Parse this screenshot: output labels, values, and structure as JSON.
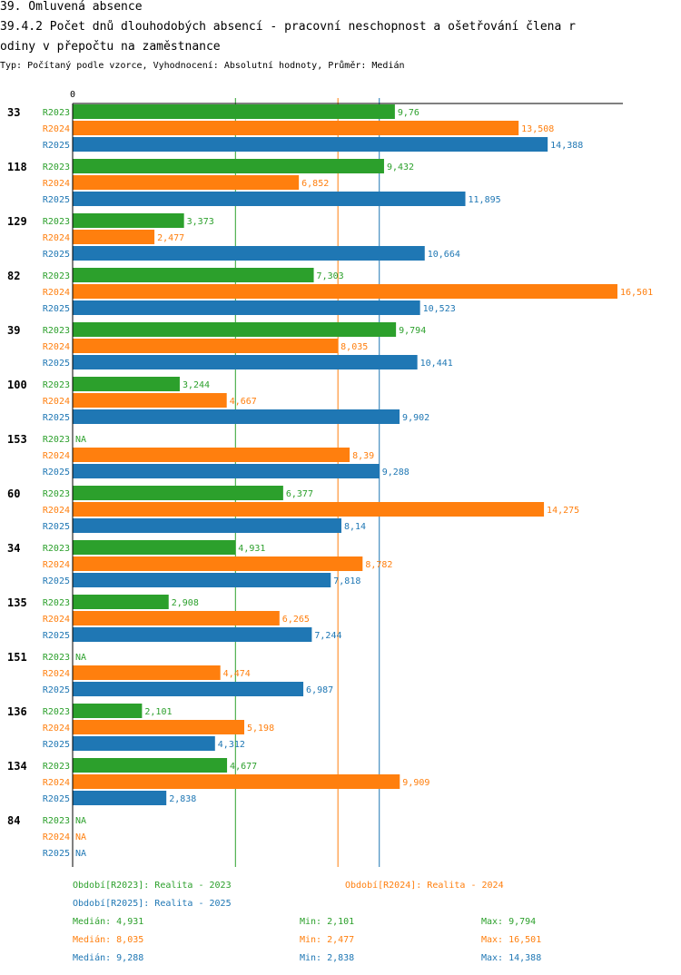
{
  "header": {
    "title": "39. Omluvená absence",
    "subtitle_line1": "39.4.2 Počet dnů dlouhodobých absencí - pracovní neschopnost a ošetřování člena r",
    "subtitle_line2": "odiny v přepočtu na zaměstnance",
    "type_line": "Typ: Počítaný podle vzorce, Vyhodnocení: Absolutní hodnoty, Průměr: Medián"
  },
  "colors": {
    "R2023": "#2ca02c",
    "R2024": "#ff7f0e",
    "R2025": "#1f77b4"
  },
  "chart_data": {
    "type": "bar",
    "orientation": "horizontal",
    "axis_zero_label": "0",
    "categories": [
      "33",
      "118",
      "129",
      "82",
      "39",
      "100",
      "153",
      "60",
      "34",
      "135",
      "151",
      "136",
      "134",
      "84"
    ],
    "series": [
      {
        "name": "R2023",
        "values": [
          9.76,
          9.432,
          3.373,
          7.303,
          9.794,
          3.244,
          null,
          6.377,
          4.931,
          2.908,
          null,
          2.101,
          4.677,
          null
        ],
        "labels": [
          "9,76",
          "9,432",
          "3,373",
          "7,303",
          "9,794",
          "3,244",
          "NA",
          "6,377",
          "4,931",
          "2,908",
          "NA",
          "2,101",
          "4,677",
          "NA"
        ]
      },
      {
        "name": "R2024",
        "values": [
          13.508,
          6.852,
          2.477,
          16.501,
          8.035,
          4.667,
          8.39,
          14.275,
          8.782,
          6.265,
          4.474,
          5.198,
          9.909,
          null
        ],
        "labels": [
          "13,508",
          "6,852",
          "2,477",
          "16,501",
          "8,035",
          "4,667",
          "8,39",
          "14,275",
          "8,782",
          "6,265",
          "4,474",
          "5,198",
          "9,909",
          "NA"
        ]
      },
      {
        "name": "R2025",
        "values": [
          14.388,
          11.895,
          10.664,
          10.523,
          10.441,
          9.902,
          9.288,
          8.14,
          7.818,
          7.244,
          6.987,
          4.312,
          2.838,
          null
        ],
        "labels": [
          "14,388",
          "11,895",
          "10,664",
          "10,523",
          "10,441",
          "9,902",
          "9,288",
          "8,14",
          "7,818",
          "7,244",
          "6,987",
          "4,312",
          "2,838",
          "NA"
        ]
      }
    ],
    "median_lines": {
      "R2023": 4.931,
      "R2024": 8.035,
      "R2025": 9.288
    },
    "xlim": [
      0,
      16.501
    ]
  },
  "legend": {
    "r2023": "Období[R2023]: Realita - 2023",
    "r2024": "Období[R2024]: Realita - 2024",
    "r2025": "Období[R2025]: Realita - 2025"
  },
  "stats": [
    {
      "median": "Medián: 4,931",
      "min": "Min: 2,101",
      "max": "Max: 9,794"
    },
    {
      "median": "Medián: 8,035",
      "min": "Min: 2,477",
      "max": "Max: 16,501"
    },
    {
      "median": "Medián: 9,288",
      "min": "Min: 2,838",
      "max": "Max: 14,388"
    }
  ]
}
